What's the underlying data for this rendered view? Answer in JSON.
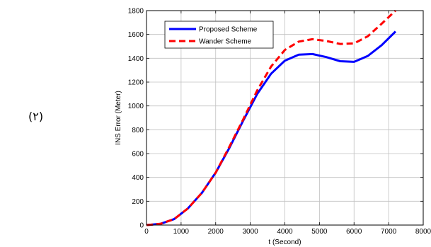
{
  "equation_number": "(۲)",
  "chart_data": {
    "type": "line",
    "xlabel": "t (Second)",
    "ylabel": "INS Error (Meter)",
    "xlim": [
      0,
      8000
    ],
    "ylim": [
      0,
      1800
    ],
    "x_ticks": [
      "0",
      "1000",
      "2000",
      "3000",
      "4000",
      "5000",
      "6000",
      "7000",
      "8000"
    ],
    "y_ticks": [
      "0",
      "200",
      "400",
      "600",
      "800",
      "1000",
      "1200",
      "1400",
      "1600",
      "1800"
    ],
    "grid": true,
    "legend_position": "top-left",
    "series": [
      {
        "name": "Proposed Scheme",
        "color": "#0000ff",
        "style": "solid",
        "x": [
          0,
          400,
          800,
          1200,
          1600,
          2000,
          2400,
          2800,
          3200,
          3600,
          4000,
          4400,
          4800,
          5200,
          5600,
          6000,
          6400,
          6800,
          7200
        ],
        "values": [
          0,
          10,
          50,
          140,
          270,
          440,
          650,
          880,
          1100,
          1270,
          1380,
          1430,
          1435,
          1410,
          1375,
          1370,
          1420,
          1510,
          1625
        ]
      },
      {
        "name": "Wander Scheme",
        "color": "#ff0000",
        "style": "dashed",
        "x": [
          0,
          400,
          800,
          1200,
          1600,
          2000,
          2400,
          2800,
          3200,
          3600,
          4000,
          4400,
          4800,
          5200,
          5600,
          6000,
          6400,
          6800,
          7200
        ],
        "values": [
          0,
          10,
          50,
          140,
          270,
          440,
          660,
          890,
          1130,
          1330,
          1470,
          1540,
          1560,
          1545,
          1520,
          1525,
          1585,
          1690,
          1800
        ]
      }
    ]
  }
}
